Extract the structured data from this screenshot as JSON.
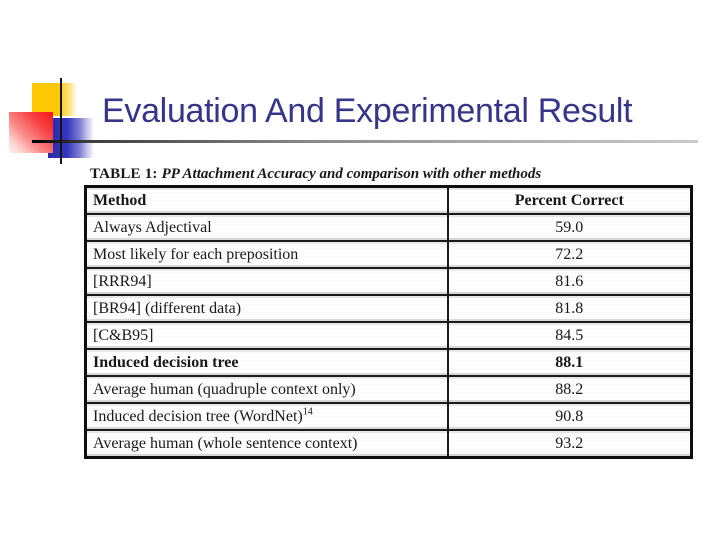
{
  "slide": {
    "title": "Evaluation And Experimental Result"
  },
  "colors": {
    "title_text": "#363589",
    "accent_yellow": "#fdc704",
    "accent_red": "#f61616",
    "accent_blue": "#2a2aa8",
    "rule_dark": "#000000",
    "rule_light": "#c9c9c9",
    "scan_ink": "#1a1a1a"
  },
  "table": {
    "caption_label": "TABLE 1:",
    "caption_text": "PP Attachment Accuracy and comparison with other methods",
    "headers": [
      "Method",
      "Percent Correct"
    ],
    "rows": [
      {
        "method": "Always Adjectival",
        "sup": "",
        "value": "59.0",
        "bold": false
      },
      {
        "method": "Most likely for each preposition",
        "sup": "",
        "value": "72.2",
        "bold": false
      },
      {
        "method": "[RRR94]",
        "sup": "",
        "value": "81.6",
        "bold": false
      },
      {
        "method": "[BR94] (different data)",
        "sup": "",
        "value": "81.8",
        "bold": false
      },
      {
        "method": "[C&B95]",
        "sup": "",
        "value": "84.5",
        "bold": false
      },
      {
        "method": "Induced decision tree",
        "sup": "",
        "value": "88.1",
        "bold": true
      },
      {
        "method": "Average human (quadruple context only)",
        "sup": "",
        "value": "88.2",
        "bold": false
      },
      {
        "method": "Induced decision tree (WordNet)",
        "sup": "14",
        "value": "90.8",
        "bold": false
      },
      {
        "method": "Average human (whole sentence context)",
        "sup": "",
        "value": "93.2",
        "bold": false
      }
    ]
  },
  "chart_data": {
    "type": "table",
    "title": "TABLE 1: PP Attachment Accuracy and comparison with other methods",
    "columns": [
      "Method",
      "Percent Correct"
    ],
    "rows": [
      [
        "Always Adjectival",
        59.0
      ],
      [
        "Most likely for each preposition",
        72.2
      ],
      [
        "[RRR94]",
        81.6
      ],
      [
        "[BR94] (different data)",
        81.8
      ],
      [
        "[C&B95]",
        84.5
      ],
      [
        "Induced decision tree",
        88.1
      ],
      [
        "Average human (quadruple context only)",
        88.2
      ],
      [
        "Induced decision tree (WordNet)",
        90.8
      ],
      [
        "Average human (whole sentence context)",
        93.2
      ]
    ]
  }
}
